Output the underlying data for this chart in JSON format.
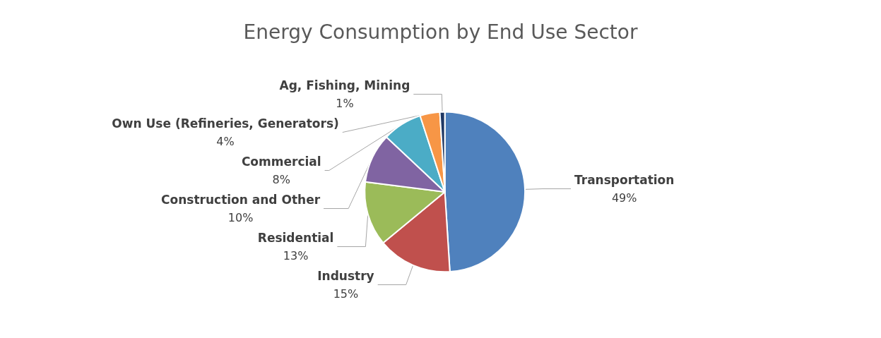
{
  "chart_data": {
    "type": "pie",
    "title": "Energy Consumption by End Use Sector",
    "categories": [
      "Transportation",
      "Industry",
      "Residential",
      "Construction and Other",
      "Commercial",
      "Own Use (Refineries, Generators)",
      "Ag, Fishing, Mining"
    ],
    "values": [
      49,
      15,
      13,
      10,
      8,
      4,
      1
    ],
    "value_labels": [
      "49%",
      "15%",
      "13%",
      "10%",
      "8%",
      "4%",
      "1%"
    ],
    "colors": [
      "#4f81bd",
      "#c0504d",
      "#9bbb59",
      "#8064a2",
      "#4bacc6",
      "#f79646",
      "#1f3864"
    ]
  }
}
